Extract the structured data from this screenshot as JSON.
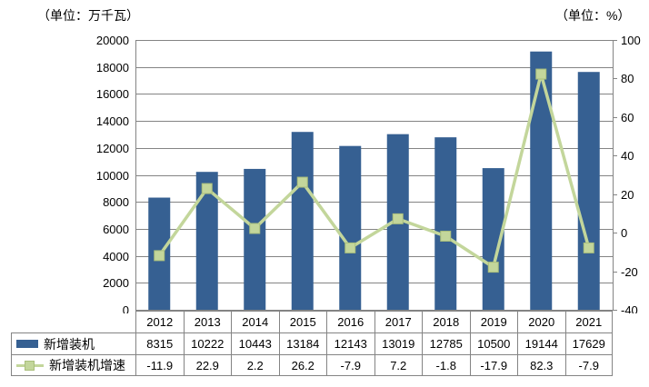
{
  "units": {
    "left": "（单位：万千瓦）",
    "right": "（单位：%）"
  },
  "colors": {
    "background": "#FFFFFF",
    "text": "#000000",
    "bar": "#366092",
    "line": "#C3D69B",
    "marker_border": "#A9BE7B",
    "grid": "#848484",
    "axis": "#848484",
    "table_border": "#848484"
  },
  "chart_data": {
    "type": "bar",
    "subtype": "combo-bar-line-dual-axis",
    "categories": [
      "2012",
      "2013",
      "2014",
      "2015",
      "2016",
      "2017",
      "2018",
      "2019",
      "2020",
      "2021"
    ],
    "series": [
      {
        "name": "新增装机",
        "type": "bar",
        "axis": "left",
        "color": "#366092",
        "values": [
          8315,
          10222,
          10443,
          13184,
          12143,
          13019,
          12785,
          10500,
          19144,
          17629
        ],
        "labels": [
          "8315",
          "10222",
          "10443",
          "13184",
          "12143",
          "13019",
          "12785",
          "10500",
          "19144",
          "17629"
        ]
      },
      {
        "name": "新增装机增速",
        "type": "line",
        "axis": "right",
        "color": "#C3D69B",
        "values": [
          -11.9,
          22.9,
          2.2,
          26.2,
          -7.9,
          7.2,
          -1.8,
          -17.9,
          82.3,
          -7.9
        ],
        "labels": [
          "-11.9",
          "22.9",
          "2.2",
          "26.2",
          "-7.9",
          "7.2",
          "-1.8",
          "-17.9",
          "82.3",
          "-7.9"
        ]
      }
    ],
    "left_axis": {
      "unit": "（单位：万千瓦）",
      "min": 0,
      "max": 20000,
      "step": 2000,
      "ticks": [
        "0",
        "2000",
        "4000",
        "6000",
        "8000",
        "10000",
        "12000",
        "14000",
        "16000",
        "18000",
        "20000"
      ]
    },
    "right_axis": {
      "unit": "（单位：%）",
      "min": -40,
      "max": 100,
      "step": 20,
      "ticks": [
        "-40",
        "-20",
        "0",
        "20",
        "40",
        "60",
        "80",
        "100"
      ]
    },
    "grid": true,
    "legend_position": "data-table-left"
  }
}
